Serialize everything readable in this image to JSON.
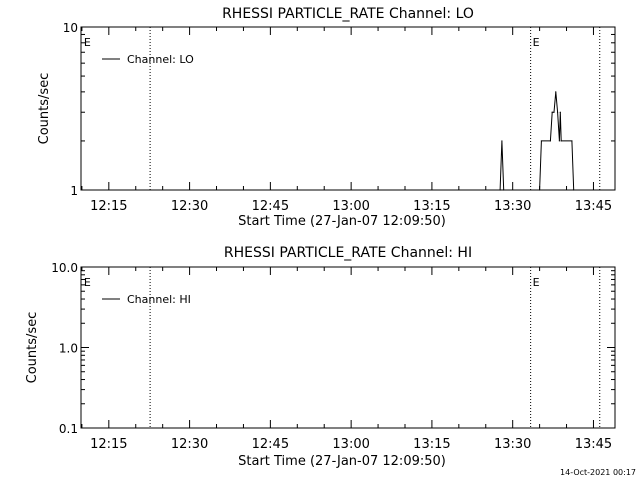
{
  "footer": {
    "date_stamp": "14-Oct-2021 00:17"
  },
  "chart_data": [
    {
      "type": "line",
      "title": "RHESSI PARTICLE_RATE Channel: LO",
      "xlabel": "Start Time (27-Jan-07 12:09:50)",
      "ylabel": "Counts/sec",
      "yscale": "log",
      "xlim": [
        "12:09:50",
        "13:49:00"
      ],
      "ylim": [
        1,
        10
      ],
      "x_ticks": [
        "12:15",
        "12:30",
        "12:45",
        "13:00",
        "13:15",
        "13:30",
        "13:45"
      ],
      "y_ticks": [
        "1",
        "10"
      ],
      "legend": {
        "label": "Channel: LO",
        "position": "top-left"
      },
      "markers": [
        {
          "time": "12:10:00",
          "style": "edge",
          "label": "E"
        },
        {
          "time": "12:22:40",
          "style": "dotted",
          "label": ""
        },
        {
          "time": "13:33:20",
          "style": "dotted",
          "label": "E"
        },
        {
          "time": "13:46:10",
          "style": "dotted",
          "label": ""
        }
      ],
      "series": [
        {
          "name": "Channel: LO",
          "points": [
            [
              "13:27:40",
              1
            ],
            [
              "13:28:00",
              2
            ],
            [
              "13:28:20",
              1
            ],
            [
              "13:35:00",
              1
            ],
            [
              "13:35:20",
              2
            ],
            [
              "13:37:00",
              2
            ],
            [
              "13:37:20",
              3
            ],
            [
              "13:37:40",
              3
            ],
            [
              "13:38:00",
              4
            ],
            [
              "13:38:20",
              3
            ],
            [
              "13:38:40",
              2
            ],
            [
              "13:38:50",
              3
            ],
            [
              "13:39:00",
              2
            ],
            [
              "13:41:00",
              2
            ],
            [
              "13:41:20",
              1
            ]
          ]
        }
      ]
    },
    {
      "type": "line",
      "title": "RHESSI PARTICLE_RATE Channel: HI",
      "xlabel": "Start Time (27-Jan-07 12:09:50)",
      "ylabel": "Counts/sec",
      "yscale": "log",
      "xlim": [
        "12:09:50",
        "13:49:00"
      ],
      "ylim": [
        0.1,
        10
      ],
      "x_ticks": [
        "12:15",
        "12:30",
        "12:45",
        "13:00",
        "13:15",
        "13:30",
        "13:45"
      ],
      "y_ticks": [
        "0.1",
        "1.0",
        "10.0"
      ],
      "legend": {
        "label": "Channel: HI",
        "position": "top-left"
      },
      "markers": [
        {
          "time": "12:10:00",
          "style": "edge",
          "label": "E"
        },
        {
          "time": "12:22:40",
          "style": "dotted",
          "label": ""
        },
        {
          "time": "13:33:20",
          "style": "dotted",
          "label": "E"
        },
        {
          "time": "13:46:10",
          "style": "dotted",
          "label": ""
        }
      ],
      "series": [
        {
          "name": "Channel: HI",
          "points": []
        }
      ]
    }
  ]
}
